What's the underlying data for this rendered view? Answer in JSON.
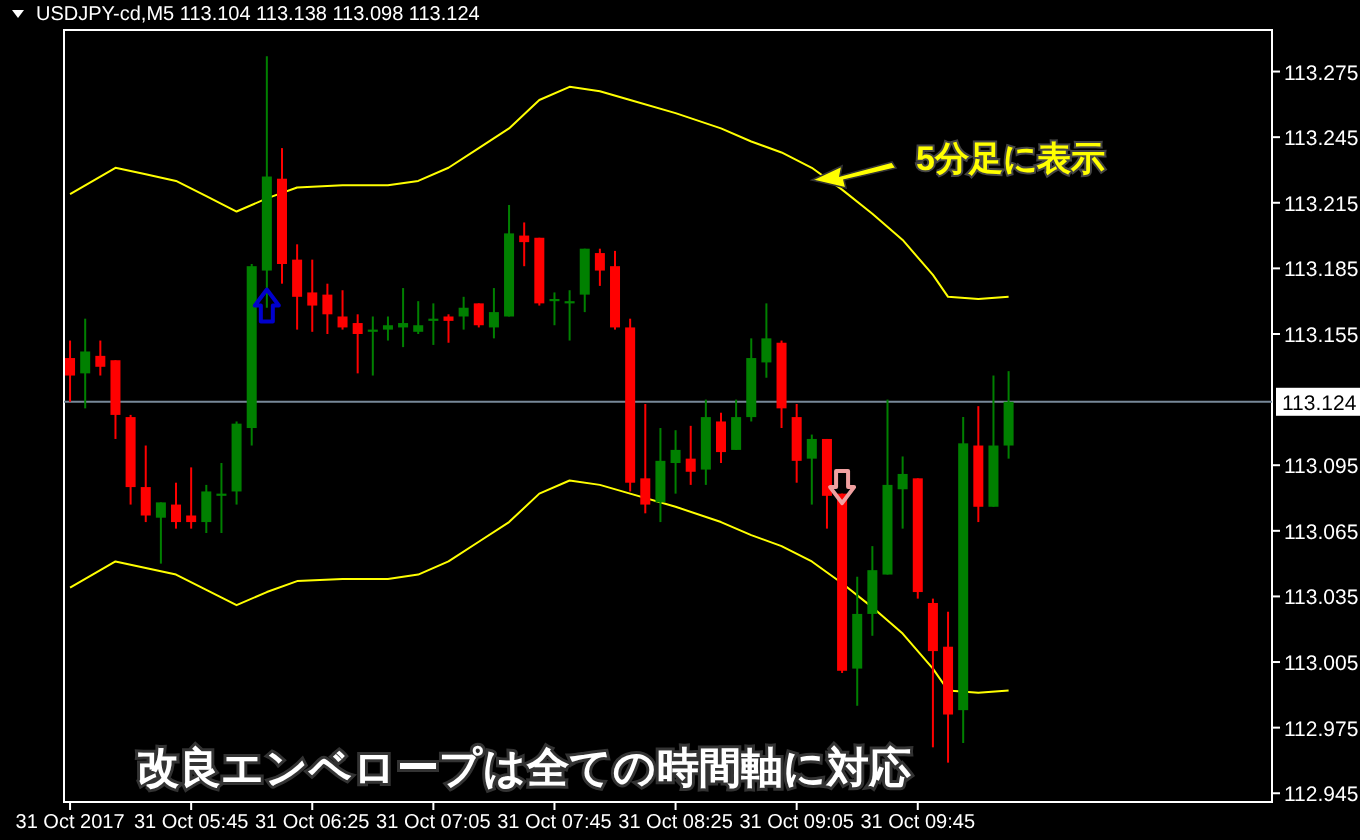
{
  "chart_data": {
    "type": "candlestick",
    "title": "USDJPY-cd,M5  113.104 113.138 113.098 113.124",
    "x": [
      "2017-10-31T05:05",
      "2017-10-31T05:10",
      "2017-10-31T05:15",
      "2017-10-31T05:20",
      "2017-10-31T05:25",
      "2017-10-31T05:30",
      "2017-10-31T05:35",
      "2017-10-31T05:40",
      "2017-10-31T05:45",
      "2017-10-31T05:50",
      "2017-10-31T05:55",
      "2017-10-31T06:00",
      "2017-10-31T06:05",
      "2017-10-31T06:10",
      "2017-10-31T06:15",
      "2017-10-31T06:20",
      "2017-10-31T06:25",
      "2017-10-31T06:30",
      "2017-10-31T06:35",
      "2017-10-31T06:40",
      "2017-10-31T06:45",
      "2017-10-31T06:50",
      "2017-10-31T06:55",
      "2017-10-31T07:00",
      "2017-10-31T07:05",
      "2017-10-31T07:10",
      "2017-10-31T07:15",
      "2017-10-31T07:20",
      "2017-10-31T07:25",
      "2017-10-31T07:30",
      "2017-10-31T07:35",
      "2017-10-31T07:40",
      "2017-10-31T07:45",
      "2017-10-31T07:50",
      "2017-10-31T07:55",
      "2017-10-31T08:00",
      "2017-10-31T08:05",
      "2017-10-31T08:10",
      "2017-10-31T08:15",
      "2017-10-31T08:20",
      "2017-10-31T08:25",
      "2017-10-31T08:30",
      "2017-10-31T08:35",
      "2017-10-31T08:40",
      "2017-10-31T08:45",
      "2017-10-31T08:50",
      "2017-10-31T08:55",
      "2017-10-31T09:00",
      "2017-10-31T09:05",
      "2017-10-31T09:10",
      "2017-10-31T09:15",
      "2017-10-31T09:20",
      "2017-10-31T09:25",
      "2017-10-31T09:30",
      "2017-10-31T09:35",
      "2017-10-31T09:40",
      "2017-10-31T09:45",
      "2017-10-31T09:50",
      "2017-10-31T09:55",
      "2017-10-31T10:00",
      "2017-10-31T10:05",
      "2017-10-31T10:10",
      "2017-10-31T10:15"
    ],
    "ohlc": [
      [
        113.144,
        113.152,
        113.124,
        113.136
      ],
      [
        113.137,
        113.162,
        113.121,
        113.147
      ],
      [
        113.145,
        113.152,
        113.136,
        113.14
      ],
      [
        113.143,
        113.143,
        113.107,
        113.118
      ],
      [
        113.117,
        113.118,
        113.077,
        113.085
      ],
      [
        113.085,
        113.104,
        113.069,
        113.072
      ],
      [
        113.071,
        113.078,
        113.05,
        113.078
      ],
      [
        113.077,
        113.087,
        113.066,
        113.069
      ],
      [
        113.072,
        113.094,
        113.066,
        113.069
      ],
      [
        113.069,
        113.086,
        113.064,
        113.083
      ],
      [
        113.081,
        113.096,
        113.064,
        113.082
      ],
      [
        113.083,
        113.115,
        113.077,
        113.114
      ],
      [
        113.112,
        113.187,
        113.104,
        113.186
      ],
      [
        113.184,
        113.282,
        113.167,
        113.227
      ],
      [
        113.226,
        113.24,
        113.178,
        113.187
      ],
      [
        113.189,
        113.196,
        113.157,
        113.172
      ],
      [
        113.174,
        113.189,
        113.156,
        113.168
      ],
      [
        113.173,
        113.178,
        113.155,
        113.164
      ],
      [
        113.163,
        113.175,
        113.157,
        113.158
      ],
      [
        113.16,
        113.164,
        113.137,
        113.155
      ],
      [
        113.156,
        113.163,
        113.136,
        113.157
      ],
      [
        113.157,
        113.163,
        113.152,
        113.159
      ],
      [
        113.158,
        113.176,
        113.149,
        113.16
      ],
      [
        113.156,
        113.17,
        113.155,
        113.159
      ],
      [
        113.161,
        113.169,
        113.15,
        113.162
      ],
      [
        113.163,
        113.164,
        113.151,
        113.161
      ],
      [
        113.163,
        113.172,
        113.157,
        113.167
      ],
      [
        113.169,
        113.169,
        113.158,
        113.159
      ],
      [
        113.158,
        113.176,
        113.153,
        113.165
      ],
      [
        113.163,
        113.214,
        113.163,
        113.201
      ],
      [
        113.2,
        113.206,
        113.186,
        113.197
      ],
      [
        113.199,
        113.199,
        113.168,
        113.169
      ],
      [
        113.17,
        113.174,
        113.159,
        113.171
      ],
      [
        113.169,
        113.175,
        113.152,
        113.17
      ],
      [
        113.173,
        113.194,
        113.165,
        113.194
      ],
      [
        113.192,
        113.194,
        113.177,
        113.184
      ],
      [
        113.186,
        113.193,
        113.157,
        113.158
      ],
      [
        113.158,
        113.162,
        113.083,
        113.087
      ],
      [
        113.089,
        113.123,
        113.073,
        113.077
      ],
      [
        113.078,
        113.112,
        113.069,
        113.097
      ],
      [
        113.096,
        113.111,
        113.082,
        113.102
      ],
      [
        113.098,
        113.113,
        113.086,
        113.092
      ],
      [
        113.093,
        113.125,
        113.086,
        113.117
      ],
      [
        113.115,
        113.119,
        113.096,
        113.101
      ],
      [
        113.102,
        113.125,
        113.102,
        113.117
      ],
      [
        113.117,
        113.153,
        113.115,
        113.144
      ],
      [
        113.142,
        113.169,
        113.135,
        113.153
      ],
      [
        113.151,
        113.152,
        113.112,
        113.121
      ],
      [
        113.117,
        113.123,
        113.087,
        113.097
      ],
      [
        113.098,
        113.109,
        113.077,
        113.107
      ],
      [
        113.107,
        113.107,
        113.066,
        113.081
      ],
      [
        113.082,
        113.082,
        113.0,
        113.001
      ],
      [
        113.002,
        113.044,
        112.985,
        113.027
      ],
      [
        113.027,
        113.058,
        113.017,
        113.047
      ],
      [
        113.045,
        113.125,
        113.045,
        113.086
      ],
      [
        113.084,
        113.099,
        113.066,
        113.091
      ],
      [
        113.089,
        113.089,
        113.034,
        113.037
      ],
      [
        113.032,
        113.034,
        112.966,
        113.01
      ],
      [
        113.012,
        113.028,
        112.959,
        112.981
      ],
      [
        112.983,
        113.117,
        112.968,
        113.105
      ],
      [
        113.104,
        113.122,
        113.069,
        113.076
      ],
      [
        113.076,
        113.136,
        113.076,
        113.104
      ],
      [
        113.104,
        113.138,
        113.098,
        113.124
      ]
    ],
    "series": [
      {
        "type": "line",
        "color": "#ffff00",
        "x": [
          "2017-10-31T05:05",
          "2017-10-31T05:15",
          "2017-10-31T05:20",
          "2017-10-31T05:30",
          "2017-10-31T05:40",
          "2017-10-31T05:50",
          "2017-10-31T06:00",
          "2017-10-31T06:10",
          "2017-10-31T06:20",
          "2017-10-31T06:35",
          "2017-10-31T06:50",
          "2017-10-31T07:00",
          "2017-10-31T07:10",
          "2017-10-31T07:20",
          "2017-10-31T07:30",
          "2017-10-31T07:40",
          "2017-10-31T07:50",
          "2017-10-31T08:00",
          "2017-10-31T08:10",
          "2017-10-31T08:25",
          "2017-10-31T08:40",
          "2017-10-31T08:50",
          "2017-10-31T09:00",
          "2017-10-31T09:10",
          "2017-10-31T09:20",
          "2017-10-31T09:30",
          "2017-10-31T09:40",
          "2017-10-31T09:50",
          "2017-10-31T09:55",
          "2017-10-31T10:05",
          "2017-10-31T10:15"
        ],
        "values": [
          113.219,
          113.227,
          113.231,
          113.228,
          113.225,
          113.218,
          113.211,
          113.217,
          113.222,
          113.223,
          113.223,
          113.225,
          113.231,
          113.24,
          113.249,
          113.262,
          113.268,
          113.266,
          113.262,
          113.256,
          113.249,
          113.243,
          113.238,
          113.231,
          113.221,
          113.21,
          113.198,
          113.182,
          113.172,
          113.171,
          113.172
        ]
      },
      {
        "type": "line",
        "color": "#ffff00",
        "x": [
          "2017-10-31T05:05",
          "2017-10-31T05:15",
          "2017-10-31T05:20",
          "2017-10-31T05:30",
          "2017-10-31T05:40",
          "2017-10-31T05:50",
          "2017-10-31T06:00",
          "2017-10-31T06:10",
          "2017-10-31T06:20",
          "2017-10-31T06:35",
          "2017-10-31T06:50",
          "2017-10-31T07:00",
          "2017-10-31T07:10",
          "2017-10-31T07:20",
          "2017-10-31T07:30",
          "2017-10-31T07:40",
          "2017-10-31T07:50",
          "2017-10-31T08:00",
          "2017-10-31T08:10",
          "2017-10-31T08:25",
          "2017-10-31T08:40",
          "2017-10-31T08:50",
          "2017-10-31T09:00",
          "2017-10-31T09:10",
          "2017-10-31T09:20",
          "2017-10-31T09:30",
          "2017-10-31T09:40",
          "2017-10-31T09:50",
          "2017-10-31T09:55",
          "2017-10-31T10:05",
          "2017-10-31T10:15"
        ],
        "values": [
          113.039,
          113.047,
          113.051,
          113.048,
          113.045,
          113.038,
          113.031,
          113.037,
          113.042,
          113.043,
          113.043,
          113.045,
          113.051,
          113.06,
          113.069,
          113.082,
          113.088,
          113.086,
          113.082,
          113.076,
          113.069,
          113.063,
          113.058,
          113.051,
          113.041,
          113.03,
          113.018,
          113.002,
          112.992,
          112.991,
          112.992
        ]
      },
      {
        "type": "scatter",
        "color": "#0000cc",
        "x": [
          "2017-10-31T06:10"
        ],
        "values": [
          113.168
        ]
      },
      {
        "type": "scatter",
        "color": "#f0a0a0",
        "x": [
          "2017-10-31T09:20"
        ],
        "values": [
          113.085
        ]
      }
    ],
    "xlim": [
      "2017-10-31T05:03",
      "2017-10-31T11:42"
    ],
    "xticks": [
      {
        "value": "2017-10-31T05:05",
        "label": "31 Oct 2017"
      },
      {
        "value": "2017-10-31T05:45",
        "label": "31 Oct 05:45"
      },
      {
        "value": "2017-10-31T06:25",
        "label": "31 Oct 06:25"
      },
      {
        "value": "2017-10-31T07:05",
        "label": "31 Oct 07:05"
      },
      {
        "value": "2017-10-31T07:45",
        "label": "31 Oct 07:45"
      },
      {
        "value": "2017-10-31T08:25",
        "label": "31 Oct 08:25"
      },
      {
        "value": "2017-10-31T09:05",
        "label": "31 Oct 09:05"
      },
      {
        "value": "2017-10-31T09:45",
        "label": "31 Oct 09:45"
      }
    ],
    "ylim": [
      112.941,
      113.294
    ],
    "yticks": [
      113.275,
      113.245,
      113.215,
      113.185,
      113.155,
      113.095,
      113.065,
      113.035,
      113.005,
      112.975,
      112.945
    ],
    "ref_lines": [
      {
        "axis": "y",
        "value": 113.124,
        "label": "113.124",
        "color": "#778899"
      }
    ],
    "annotations": [
      "5分足に表示",
      "改良エンベロープは全ての時間軸に対応"
    ]
  }
}
